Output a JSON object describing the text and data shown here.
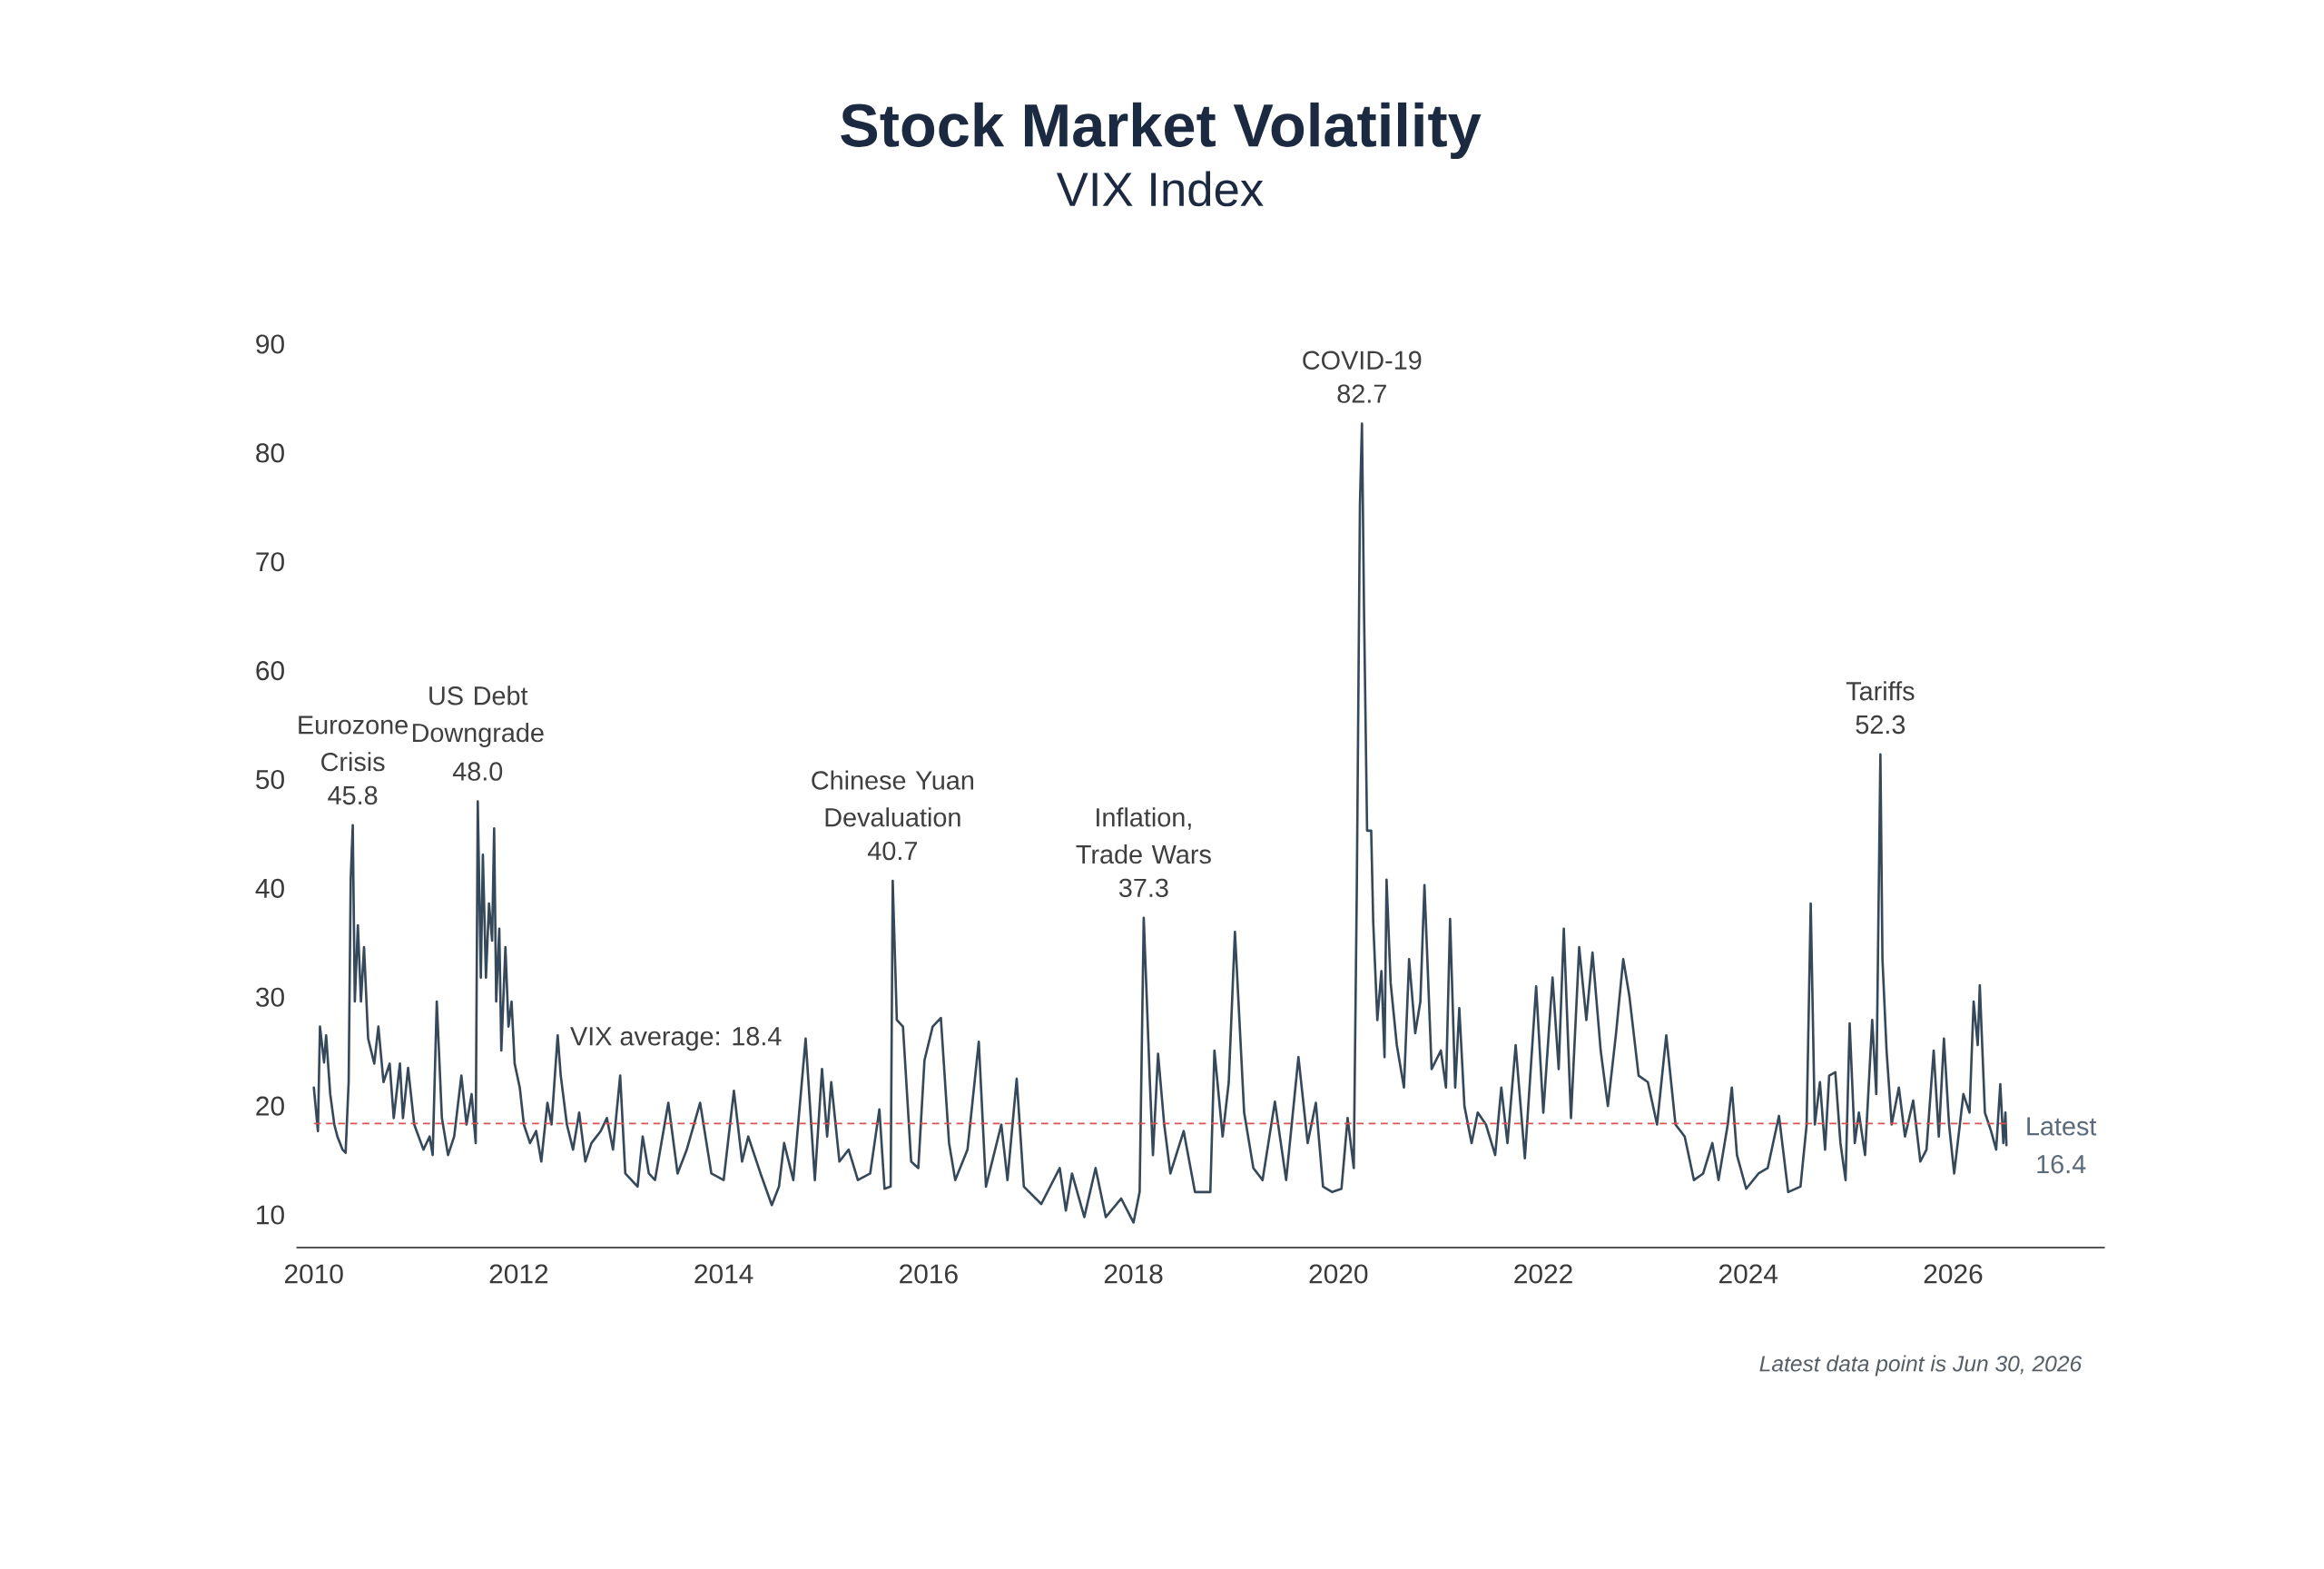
{
  "chart_data": {
    "type": "line",
    "title": "Stock Market Volatility",
    "subtitle": "VIX Index",
    "x": [
      2010.0,
      2010.04,
      2010.06,
      2010.1,
      2010.12,
      2010.16,
      2010.2,
      2010.23,
      2010.28,
      2010.31,
      2010.34,
      2010.36,
      2010.38,
      2010.4,
      2010.43,
      2010.46,
      2010.49,
      2010.53,
      2010.59,
      2010.63,
      2010.68,
      2010.74,
      2010.78,
      2010.84,
      2010.87,
      2010.92,
      2010.98,
      2011.07,
      2011.13,
      2011.16,
      2011.2,
      2011.25,
      2011.31,
      2011.37,
      2011.44,
      2011.49,
      2011.54,
      2011.58,
      2011.6,
      2011.63,
      2011.65,
      2011.68,
      2011.71,
      2011.74,
      2011.76,
      2011.78,
      2011.81,
      2011.83,
      2011.87,
      2011.9,
      2011.93,
      2011.96,
      2012.01,
      2012.05,
      2012.11,
      2012.17,
      2012.22,
      2012.28,
      2012.32,
      2012.38,
      2012.41,
      2012.47,
      2012.53,
      2012.59,
      2012.65,
      2012.71,
      2012.8,
      2012.86,
      2012.92,
      2012.99,
      2013.04,
      2013.16,
      2013.21,
      2013.27,
      2013.33,
      2013.46,
      2013.55,
      2013.64,
      2013.77,
      2013.88,
      2014.0,
      2014.1,
      2014.18,
      2014.24,
      2014.36,
      2014.47,
      2014.54,
      2014.59,
      2014.68,
      2014.8,
      2014.89,
      2014.96,
      2015.01,
      2015.05,
      2015.13,
      2015.22,
      2015.31,
      2015.43,
      2015.52,
      2015.57,
      2015.63,
      2015.65,
      2015.69,
      2015.75,
      2015.83,
      2015.9,
      2015.96,
      2016.04,
      2016.12,
      2016.2,
      2016.26,
      2016.38,
      2016.49,
      2016.56,
      2016.71,
      2016.77,
      2016.86,
      2016.93,
      2017.1,
      2017.28,
      2017.34,
      2017.4,
      2017.52,
      2017.63,
      2017.73,
      2017.88,
      2018.0,
      2018.06,
      2018.1,
      2018.16,
      2018.19,
      2018.24,
      2018.3,
      2018.36,
      2018.49,
      2018.6,
      2018.75,
      2018.79,
      2018.87,
      2018.93,
      2018.99,
      2019.08,
      2019.17,
      2019.26,
      2019.38,
      2019.49,
      2019.61,
      2019.7,
      2019.78,
      2019.85,
      2019.94,
      2020.03,
      2020.09,
      2020.15,
      2020.18,
      2020.21,
      2020.23,
      2020.25,
      2020.28,
      2020.32,
      2020.34,
      2020.38,
      2020.42,
      2020.45,
      2020.47,
      2020.51,
      2020.57,
      2020.64,
      2020.69,
      2020.75,
      2020.8,
      2020.84,
      2020.91,
      2021.0,
      2021.05,
      2021.09,
      2021.14,
      2021.18,
      2021.23,
      2021.3,
      2021.36,
      2021.44,
      2021.53,
      2021.59,
      2021.65,
      2021.73,
      2021.82,
      2021.93,
      2022.0,
      2022.09,
      2022.15,
      2022.2,
      2022.27,
      2022.35,
      2022.42,
      2022.48,
      2022.56,
      2022.63,
      2022.71,
      2022.78,
      2022.84,
      2022.93,
      2023.02,
      2023.11,
      2023.2,
      2023.29,
      2023.38,
      2023.47,
      2023.56,
      2023.65,
      2023.71,
      2023.8,
      2023.84,
      2023.89,
      2023.98,
      2024.1,
      2024.19,
      2024.3,
      2024.39,
      2024.51,
      2024.57,
      2024.61,
      2024.65,
      2024.7,
      2024.75,
      2024.79,
      2024.85,
      2024.9,
      2024.95,
      2024.99,
      2025.04,
      2025.08,
      2025.14,
      2025.21,
      2025.25,
      2025.29,
      2025.31,
      2025.35,
      2025.4,
      2025.47,
      2025.53,
      2025.61,
      2025.68,
      2025.74,
      2025.81,
      2025.86,
      2025.91,
      2025.96,
      2026.01,
      2026.1,
      2026.16,
      2026.2,
      2026.24,
      2026.26,
      2026.31,
      2026.37,
      2026.42,
      2026.46,
      2026.49,
      2026.51,
      2026.52
    ],
    "values": [
      21.7,
      17.7,
      27.3,
      24.0,
      26.5,
      21.1,
      18.3,
      17.2,
      16.0,
      15.7,
      22.2,
      40.8,
      45.8,
      29.6,
      36.6,
      29.6,
      34.6,
      26.2,
      23.9,
      27.3,
      22.2,
      23.9,
      18.9,
      23.9,
      18.9,
      23.5,
      18.3,
      16.0,
      17.2,
      15.5,
      29.6,
      18.9,
      15.5,
      17.2,
      22.8,
      18.3,
      21.1,
      16.6,
      48.0,
      31.8,
      43.1,
      31.8,
      38.6,
      35.2,
      45.5,
      29.6,
      36.3,
      25.1,
      34.6,
      27.3,
      29.6,
      23.9,
      21.7,
      18.3,
      16.6,
      17.7,
      14.9,
      20.3,
      18.3,
      26.5,
      22.8,
      18.3,
      16.0,
      19.4,
      14.9,
      16.6,
      17.7,
      18.9,
      16.0,
      22.8,
      13.8,
      12.6,
      17.2,
      13.8,
      13.2,
      20.3,
      13.8,
      16.0,
      20.3,
      13.8,
      13.2,
      21.4,
      14.9,
      17.2,
      13.8,
      10.9,
      12.6,
      16.6,
      13.2,
      26.2,
      13.2,
      23.4,
      17.2,
      22.2,
      14.9,
      16.0,
      13.2,
      13.8,
      19.7,
      12.4,
      12.6,
      40.7,
      27.9,
      27.3,
      14.9,
      14.3,
      24.2,
      27.3,
      28.1,
      16.6,
      13.2,
      16.0,
      25.9,
      12.6,
      18.3,
      13.2,
      22.5,
      12.6,
      11.0,
      14.3,
      10.4,
      13.8,
      9.8,
      14.3,
      9.8,
      11.5,
      9.3,
      12.1,
      37.3,
      22.2,
      15.5,
      24.8,
      18.3,
      13.8,
      17.7,
      12.1,
      12.1,
      25.1,
      17.2,
      22.2,
      36.0,
      19.4,
      14.3,
      13.2,
      20.4,
      13.2,
      24.5,
      16.6,
      20.3,
      12.6,
      12.1,
      12.4,
      18.9,
      14.3,
      40.3,
      75.2,
      82.7,
      65.6,
      45.3,
      45.3,
      36.9,
      27.9,
      32.4,
      24.5,
      40.8,
      31.3,
      25.6,
      21.7,
      33.5,
      26.7,
      29.6,
      40.3,
      23.4,
      25.1,
      21.7,
      37.2,
      21.7,
      29.0,
      20.0,
      16.6,
      19.4,
      18.3,
      15.5,
      21.7,
      16.6,
      25.6,
      15.2,
      31.0,
      19.4,
      31.8,
      23.4,
      36.3,
      18.9,
      34.6,
      27.9,
      34.1,
      25.1,
      20.0,
      26.7,
      33.5,
      30.1,
      22.8,
      22.2,
      18.3,
      26.5,
      18.3,
      17.2,
      13.2,
      13.8,
      16.6,
      13.2,
      18.3,
      21.7,
      15.5,
      12.4,
      13.8,
      14.3,
      19.1,
      12.1,
      12.6,
      18.3,
      38.6,
      18.3,
      22.2,
      16.0,
      22.8,
      23.1,
      16.6,
      13.2,
      27.6,
      16.6,
      19.4,
      15.5,
      27.9,
      21.1,
      52.3,
      33.5,
      25.1,
      18.3,
      21.7,
      17.2,
      20.5,
      14.9,
      16.0,
      25.1,
      17.2,
      26.2,
      18.3,
      13.8,
      21.1,
      19.4,
      29.6,
      25.6,
      31.1,
      19.4,
      17.7,
      16.0,
      22.0,
      16.6,
      19.4,
      16.4
    ],
    "color": "#36495a",
    "xlim": [
      2009.83,
      2027.48
    ],
    "xticks": [
      2010,
      2012,
      2014,
      2016,
      2018,
      2020,
      2022,
      2024,
      2026
    ],
    "ylim": [
      7,
      90
    ],
    "yticks": [
      10,
      20,
      30,
      40,
      50,
      60,
      70,
      80,
      90
    ],
    "ref_lines": [
      {
        "axis": "y",
        "value": 18.4,
        "label": "VIX average: 18.4",
        "color": "#d9534f",
        "line_style": "dashed"
      }
    ],
    "annotations": [
      {
        "text": "Eurozone Crisis",
        "x": 2010.38,
        "y": 45.8
      },
      {
        "text": "45.8",
        "x": 2010.38,
        "y": 45.8
      },
      {
        "text": "US Debt Downgrade",
        "x": 2011.6,
        "y": 48.0
      },
      {
        "text": "48.0",
        "x": 2011.6,
        "y": 48.0
      },
      {
        "text": "Chinese Yuan Devaluation",
        "x": 2015.65,
        "y": 40.7
      },
      {
        "text": "40.7",
        "x": 2015.65,
        "y": 40.7
      },
      {
        "text": "Inflation, Trade Wars",
        "x": 2018.1,
        "y": 37.3
      },
      {
        "text": "37.3",
        "x": 2018.1,
        "y": 37.3
      },
      {
        "text": "COVID-19",
        "x": 2020.23,
        "y": 82.7
      },
      {
        "text": "82.7",
        "x": 2020.23,
        "y": 82.7
      },
      {
        "text": "Tariffs",
        "x": 2025.29,
        "y": 52.3
      },
      {
        "text": "52.3",
        "x": 2025.29,
        "y": 52.3
      },
      {
        "text": "Latest",
        "x": 2026.52,
        "y": 16.4
      },
      {
        "text": "16.4",
        "x": 2026.52,
        "y": 16.4
      },
      "Latest data point is Jun 30, 2026"
    ]
  }
}
